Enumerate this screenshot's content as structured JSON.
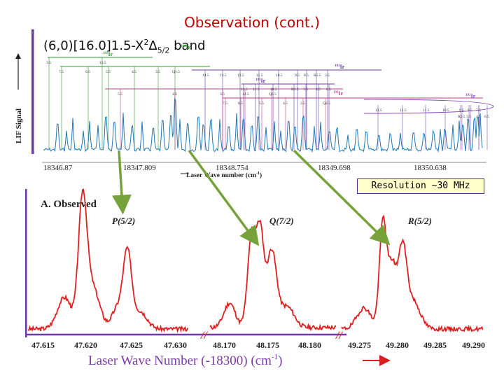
{
  "title": "Observation (cont.)",
  "subtitle": {
    "prefix": "(6,0)[16.0]1.5-X",
    "sup": "2",
    "delta": "Δ",
    "sub": "5/2",
    "suffix": " band"
  },
  "resolution": "Resolution ~30 MHz",
  "colors": {
    "title": "#c00000",
    "axis_purple": "#6b3aa6",
    "arrow_green": "#76a23a",
    "trace_blue": "#1f77b4",
    "trace_red": "#e02020",
    "xlabel_purple": "#7b3aa8"
  },
  "top_panel": {
    "ylabel": "LIF Signal",
    "xlabel": "Laser Wave number (cm",
    "xlabel_sup": "-1",
    "xlabel_close": ")",
    "xticks": [
      "18346.87",
      "18347.809",
      "18348.754",
      "18349.698",
      "18350.638"
    ],
    "iso_labels": [
      "193Ir",
      "191Ir",
      "193Ir",
      "191Ir",
      "193Ir",
      "191Ir"
    ],
    "iso_label_parts": [
      {
        "mass": "193",
        "el": "Ir"
      },
      {
        "mass": "191",
        "el": "Ir"
      },
      {
        "mass": "193",
        "el": "Ir"
      },
      {
        "mass": "191",
        "el": "Ir"
      },
      {
        "mass": "193",
        "el": "Ir"
      },
      {
        "mass": "191",
        "el": "Ir"
      }
    ],
    "branch_numbers": {
      "row1": [
        "3.5",
        "13.5"
      ],
      "row2": [
        "7.5",
        "6.5",
        "5.5",
        "4.5",
        "3.5",
        "Q1.5"
      ],
      "row3": [
        "14.5",
        "13.5",
        "12.5",
        "11.5",
        "10.5",
        "9.5",
        "8.5",
        "R5.5",
        "3.5"
      ],
      "row4": [
        "12.5",
        "11.5",
        "10.5",
        "R2.5",
        "3.5",
        "4.5",
        "6.5"
      ],
      "row5": [
        "5.5",
        "4.5",
        "3.5",
        "12.5",
        "Q2.5"
      ],
      "row6": [
        "7.5",
        "6.5",
        "5.5",
        "4.5",
        "3.5",
        "Q2.5"
      ],
      "row7": [
        "13.5",
        "12.5",
        "11.5",
        "10.5",
        "9.5",
        "8.5",
        "7.5",
        "R2.5",
        "3.5",
        "4.5",
        "6.5"
      ]
    }
  },
  "bottom_panel": {
    "label": "A. Observed",
    "peaks": [
      "P(5/2)",
      "Q(7/2)",
      "R(5/2)"
    ],
    "xticks": [
      "47.615",
      "47.620",
      "47.625",
      "47.630",
      "48.170",
      "48.175",
      "48.180",
      "49.275",
      "49.280",
      "49.285",
      "49.290"
    ],
    "break_mark": "//",
    "xlabel": "Laser Wave Number (-18300) (cm",
    "xlabel_sup": "-1",
    "xlabel_close": ")"
  }
}
